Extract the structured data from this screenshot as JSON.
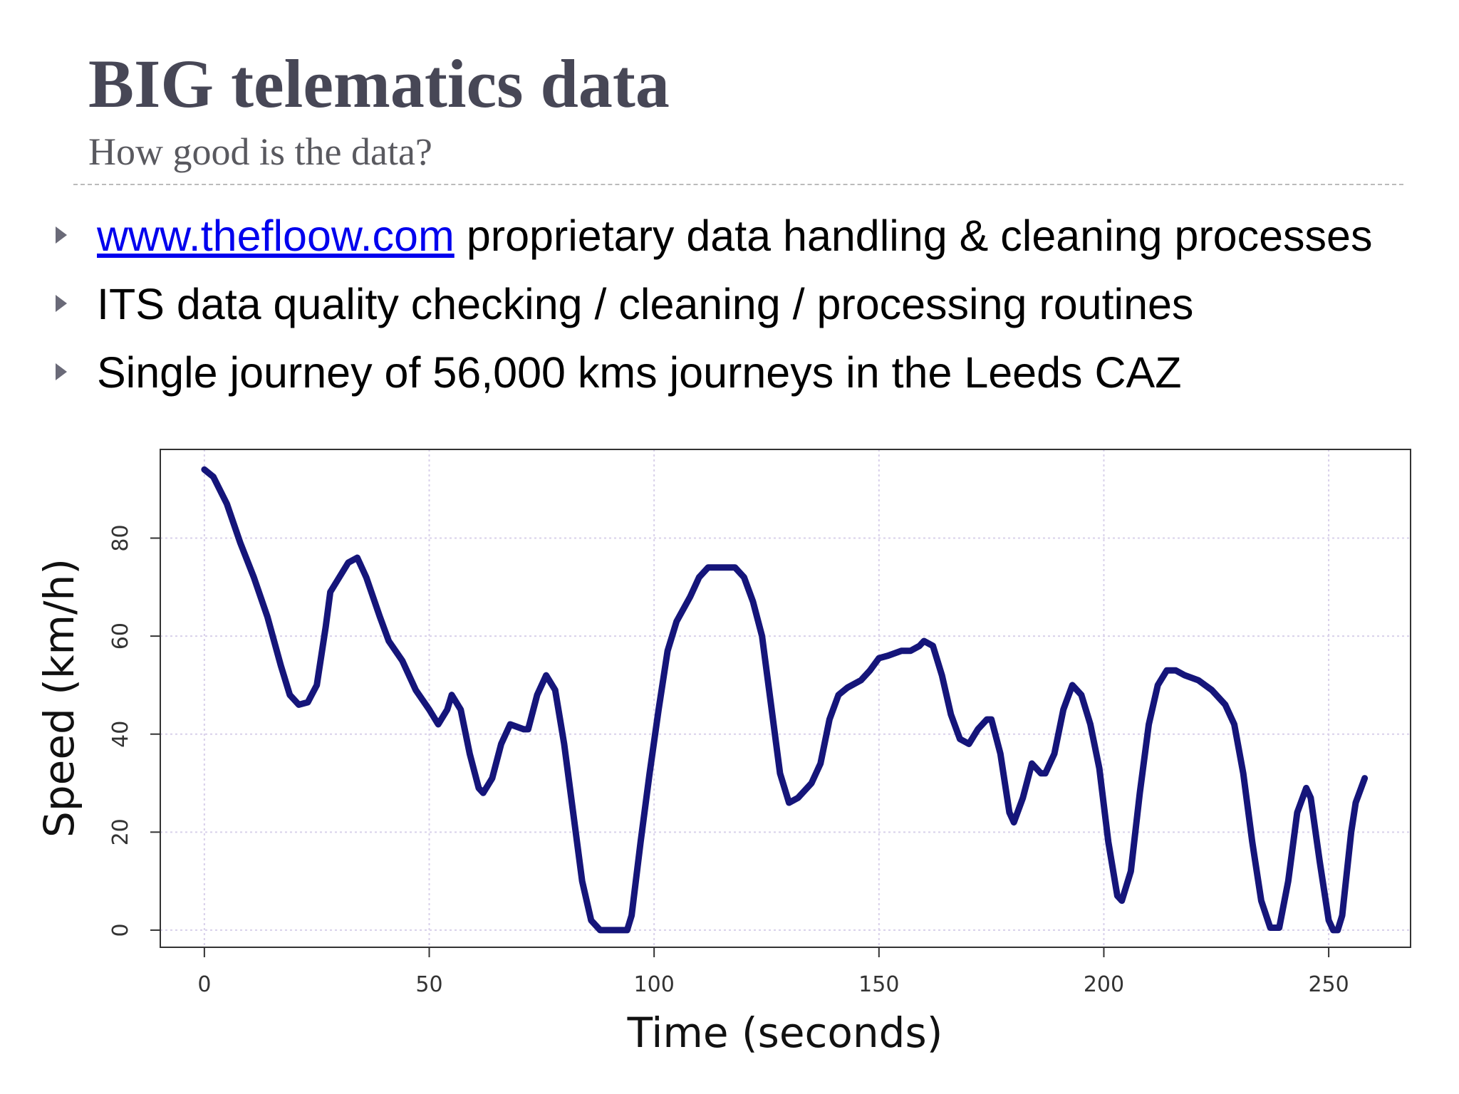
{
  "title": "BIG telematics data",
  "subtitle": "How good is the data?",
  "bullets": [
    {
      "link": "www.thefloow.com",
      "text": "proprietary data handling & cleaning processes"
    },
    {
      "text": "ITS data quality checking / cleaning / processing routines"
    },
    {
      "text": "Single journey of 56,000 kms journeys in the Leeds CAZ"
    }
  ],
  "chart_data": {
    "type": "line",
    "xlabel": "Time (seconds)",
    "ylabel": "Speed (km/h)",
    "color": "#15157a",
    "grid": true,
    "xlim": [
      -9.8,
      268.2
    ],
    "ylim": [
      -3.5,
      98.1
    ],
    "xticks": [
      0,
      50,
      100,
      150,
      200,
      250
    ],
    "yticks": [
      0,
      20,
      40,
      60,
      80
    ],
    "x": [
      0,
      2,
      5,
      8,
      11,
      14,
      17,
      19,
      21,
      23,
      25,
      27,
      28,
      30,
      32,
      34,
      36,
      39,
      41,
      44,
      47,
      50,
      52,
      54,
      55,
      57,
      59,
      61,
      62,
      64,
      66,
      68,
      71,
      72,
      74,
      76,
      78,
      80,
      82,
      84,
      86,
      88,
      90,
      92,
      94,
      95,
      97,
      99,
      101,
      103,
      105,
      108,
      110,
      112,
      115,
      118,
      120,
      122,
      124,
      126,
      128,
      130,
      132,
      135,
      137,
      139,
      141,
      143,
      146,
      148,
      150,
      152,
      155,
      157,
      159,
      160,
      162,
      164,
      166,
      168,
      170,
      172,
      174,
      175,
      177,
      179,
      180,
      182,
      184,
      186,
      187,
      189,
      191,
      193,
      195,
      197,
      199,
      201,
      203,
      204,
      206,
      208,
      210,
      212,
      214,
      216,
      218,
      221,
      224,
      227,
      229,
      231,
      233,
      235,
      237,
      239,
      241,
      243,
      245,
      246,
      248,
      250,
      251,
      252,
      253,
      255,
      256,
      258
    ],
    "values": [
      94,
      92.5,
      87,
      79,
      72,
      64,
      54,
      48,
      46,
      46.5,
      50,
      62,
      69,
      72,
      75,
      76,
      72,
      64,
      59,
      55,
      49,
      45,
      42,
      45,
      48,
      45,
      36,
      29,
      28,
      31,
      38,
      42,
      41,
      41,
      48,
      52,
      49,
      38,
      24,
      10,
      2,
      0,
      0,
      0,
      0,
      3,
      18,
      32,
      45,
      57,
      63,
      68,
      72,
      74,
      74,
      74,
      72,
      67,
      60,
      46,
      32,
      26,
      27,
      30,
      34,
      43,
      48,
      49.5,
      51,
      53,
      55.5,
      56,
      57,
      57,
      58,
      59,
      58,
      52,
      44,
      39,
      38,
      41,
      43,
      43,
      36,
      24,
      22,
      27,
      34,
      32,
      32,
      36,
      45,
      50,
      48,
      42,
      33,
      18,
      7,
      6,
      12,
      28,
      42,
      50,
      53,
      53,
      52,
      51,
      49,
      46,
      42,
      32,
      18,
      6,
      0.5,
      0.5,
      10,
      24,
      29,
      27,
      14,
      2,
      0,
      0,
      3,
      20,
      26,
      31
    ]
  }
}
